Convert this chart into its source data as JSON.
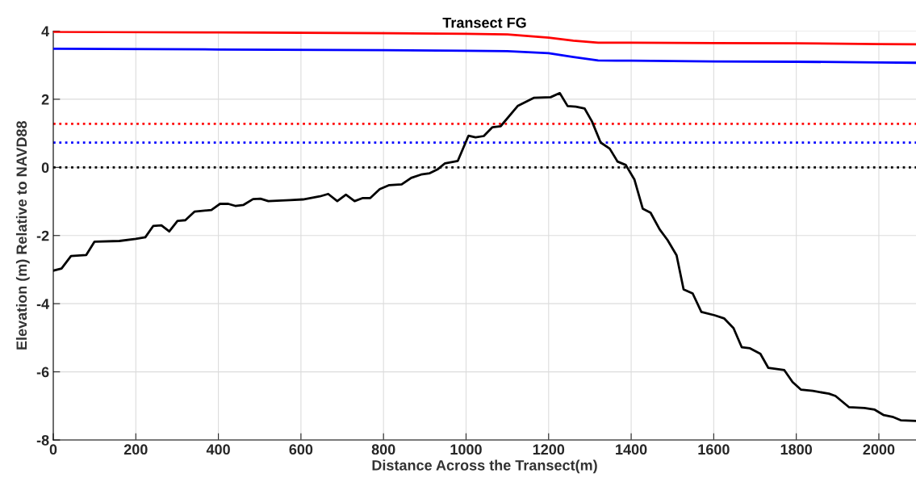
{
  "chart_data": {
    "type": "line",
    "title": "Transect FG",
    "xlabel": "Distance Across the Transect(m)",
    "ylabel": "Elevation (m) Relative to NAVD88",
    "xlim": [
      0,
      2090
    ],
    "ylim": [
      -8,
      4
    ],
    "xticks": [
      0,
      200,
      400,
      600,
      800,
      1000,
      1200,
      1400,
      1600,
      1800,
      2000
    ],
    "yticks": [
      -8,
      -6,
      -4,
      -2,
      0,
      2,
      4
    ],
    "grid": true,
    "marker": "none",
    "line_style": "solid",
    "series": [
      {
        "color": "#ff0000",
        "x": [
          0,
          400,
          800,
          1000,
          1100,
          1200,
          1260,
          1320,
          1400,
          1600,
          1800,
          2000,
          2088
        ],
        "values": [
          3.98,
          3.96,
          3.94,
          3.92,
          3.9,
          3.81,
          3.72,
          3.66,
          3.66,
          3.65,
          3.64,
          3.62,
          3.61
        ]
      },
      {
        "color": "#0000ff",
        "x": [
          0,
          400,
          800,
          1000,
          1100,
          1200,
          1260,
          1320,
          1400,
          1600,
          1800,
          2000,
          2088
        ],
        "values": [
          3.48,
          3.46,
          3.44,
          3.42,
          3.41,
          3.35,
          3.24,
          3.14,
          3.13,
          3.11,
          3.1,
          3.08,
          3.07
        ]
      },
      {
        "color": "#000000",
        "x": [
          0,
          20,
          43,
          80,
          100,
          160,
          200,
          223,
          242,
          262,
          281,
          301,
          320,
          342,
          383,
          404,
          424,
          441,
          461,
          484,
          502,
          521,
          574,
          605,
          646,
          666,
          688,
          709,
          730,
          750,
          768,
          791,
          814,
          844,
          867,
          891,
          912,
          932,
          949,
          980,
          1006,
          1023,
          1043,
          1064,
          1084,
          1125,
          1164,
          1205,
          1227,
          1246,
          1266,
          1287,
          1305,
          1326,
          1348,
          1367,
          1387,
          1408,
          1428,
          1447,
          1469,
          1488,
          1510,
          1527,
          1549,
          1570,
          1602,
          1625,
          1648,
          1668,
          1688,
          1713,
          1732,
          1771,
          1791,
          1811,
          1840,
          1879,
          1895,
          1928,
          1965,
          1990,
          2012,
          2033,
          2053,
          2088
        ],
        "values": [
          -3.03,
          -2.97,
          -2.6,
          -2.57,
          -2.18,
          -2.16,
          -2.1,
          -2.05,
          -1.72,
          -1.7,
          -1.88,
          -1.57,
          -1.55,
          -1.3,
          -1.25,
          -1.07,
          -1.07,
          -1.13,
          -1.1,
          -0.93,
          -0.92,
          -0.99,
          -0.96,
          -0.94,
          -0.85,
          -0.78,
          -0.99,
          -0.8,
          -0.99,
          -0.9,
          -0.9,
          -0.64,
          -0.52,
          -0.5,
          -0.31,
          -0.21,
          -0.17,
          -0.05,
          0.12,
          0.19,
          0.93,
          0.88,
          0.92,
          1.18,
          1.21,
          1.8,
          2.04,
          2.06,
          2.18,
          1.8,
          1.78,
          1.73,
          1.35,
          0.73,
          0.55,
          0.17,
          0.07,
          -0.36,
          -1.21,
          -1.33,
          -1.82,
          -2.13,
          -2.58,
          -3.58,
          -3.7,
          -4.24,
          -4.34,
          -4.43,
          -4.72,
          -5.28,
          -5.31,
          -5.47,
          -5.88,
          -5.95,
          -6.3,
          -6.52,
          -6.56,
          -6.64,
          -6.71,
          -7.04,
          -7.06,
          -7.11,
          -7.27,
          -7.32,
          -7.42,
          -7.44
        ]
      }
    ],
    "ref_lines": [
      {
        "axis": "y",
        "value": 1.28,
        "color": "#ff0000",
        "line_style": "dotted"
      },
      {
        "axis": "y",
        "value": 0.73,
        "color": "#0000ff",
        "line_style": "dotted"
      },
      {
        "axis": "y",
        "value": 0,
        "color": "#000000",
        "line_style": "dotted"
      }
    ]
  }
}
